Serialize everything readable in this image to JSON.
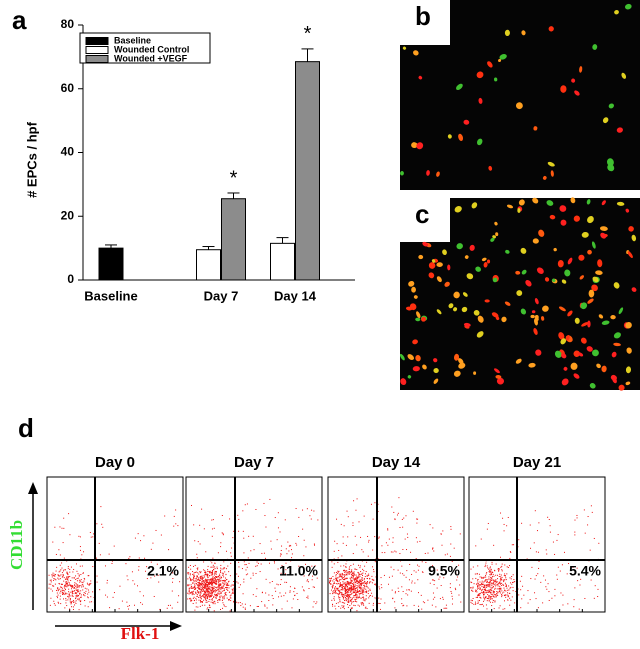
{
  "chart_data": {
    "type": "bar",
    "ylabel": "# EPCs / hpf",
    "categories": [
      "Baseline",
      "Day 7",
      "Day 14"
    ],
    "series": [
      {
        "name": "Baseline",
        "color": "#000000",
        "values": [
          10,
          null,
          null
        ],
        "errors": [
          1,
          null,
          null
        ]
      },
      {
        "name": "Wounded Control",
        "color": "#ffffff",
        "values": [
          null,
          9.5,
          11.5
        ],
        "errors": [
          null,
          1,
          1.8
        ]
      },
      {
        "name": "Wounded +VEGF",
        "color": "#8c8c8c",
        "values": [
          null,
          25.5,
          68.5
        ],
        "errors": [
          null,
          1.8,
          4
        ]
      }
    ],
    "annotations": [
      null,
      "*",
      "*"
    ],
    "ylim": [
      0,
      80
    ],
    "yticks": [
      0,
      20,
      40,
      60,
      80
    ]
  },
  "panels": {
    "a": "a",
    "b": "b",
    "c": "c",
    "d": "d"
  },
  "flow": {
    "y_label": "CD11b",
    "x_label": "Flk-1",
    "plots": [
      {
        "title": "Day 0",
        "percent": "2.1%"
      },
      {
        "title": "Day 7",
        "percent": "11.0%"
      },
      {
        "title": "Day 14",
        "percent": "9.5%"
      },
      {
        "title": "Day 21",
        "percent": "5.4%"
      }
    ]
  }
}
